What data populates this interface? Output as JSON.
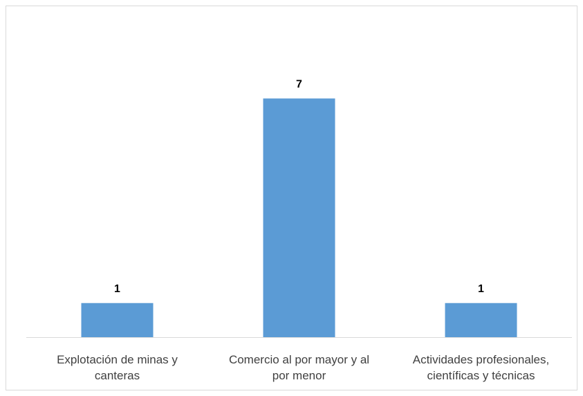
{
  "chart_data": {
    "type": "bar",
    "categories": [
      "Explotación de minas y canteras",
      "Comercio al por mayor y al por menor",
      "Actividades profesionales, científicas y técnicas"
    ],
    "category_lines": [
      [
        "Explotación de minas y",
        "canteras"
      ],
      [
        "Comercio al por mayor y al",
        "por menor"
      ],
      [
        "Actividades profesionales,",
        "científicas y técnicas"
      ]
    ],
    "values": [
      1,
      7,
      1
    ],
    "data_labels": [
      "1",
      "7",
      "1"
    ],
    "title": "",
    "xlabel": "",
    "ylabel": "",
    "ylim": [
      0,
      8
    ],
    "grid": false,
    "legend": "none",
    "colors": {
      "bar": "#5b9bd5",
      "axis": "#d9d9d9",
      "label_text": "#404040",
      "data_label_text": "#000000"
    }
  }
}
